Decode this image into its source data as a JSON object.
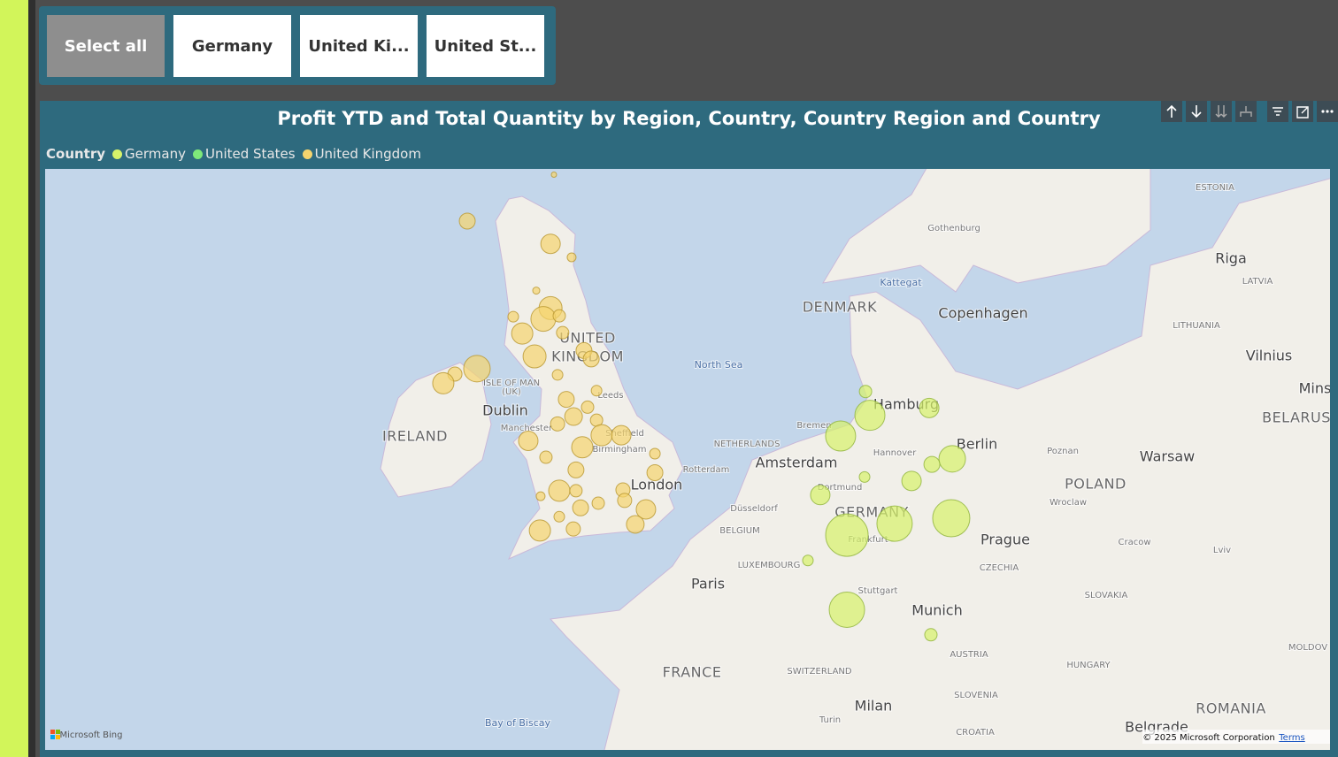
{
  "slicer": {
    "buttons": [
      "Select all",
      "Germany",
      "United Ki...",
      "United St..."
    ]
  },
  "chart_data": {
    "type": "bubble-map",
    "title": "Profit YTD and Total Quantity by Region, Country, Country Region and Country",
    "legend_title": "Country",
    "series": [
      {
        "name": "Germany",
        "color": "#d7f26a",
        "lon": [
          9.81,
          9.99,
          8.78,
          12.44,
          13.39,
          12.55,
          9.77,
          11.71,
          7.94,
          11.01,
          13.35,
          9.04,
          7.43,
          9.04,
          12.51
        ],
        "lat": [
          54.18,
          53.6,
          53.09,
          53.78,
          52.52,
          52.38,
          52.06,
          51.96,
          51.6,
          50.86,
          51.0,
          50.56,
          49.89,
          48.56,
          47.87
        ],
        "size": [
          7,
          17,
          17,
          11,
          15,
          9,
          6,
          11,
          11,
          20,
          21,
          24,
          6,
          20,
          7
        ]
      },
      {
        "name": "United States",
        "color": "#7ee87a",
        "lon": [],
        "lat": [],
        "size": []
      },
      {
        "name": "United Kingdom",
        "color": "#f5d46e",
        "lon": [
          -6.64,
          -3.2,
          -2.33,
          -3.79,
          -3.2,
          -3.5,
          -4.37,
          -4.74,
          -2.84,
          -2.7,
          -3.86,
          -6.24,
          -7.15,
          -7.63,
          -1.82,
          -1.52,
          -2.91,
          -2.55,
          -1.3,
          -1.67,
          -2.25,
          -2.91,
          -1.3,
          -4.12,
          -1.89,
          -1.09,
          -0.28,
          -3.39,
          -2.15,
          -2.84,
          -1.96,
          -0.21,
          -0.14,
          0.74,
          1.11,
          1.11,
          0.3,
          -1.23,
          -2.26,
          -3.64,
          -2.84,
          -2.15,
          -3.61,
          -3.06
        ],
        "lat": [
          58.1,
          57.6,
          57.3,
          56.55,
          56.15,
          55.9,
          55.56,
          55.95,
          55.97,
          55.58,
          55.02,
          54.73,
          54.6,
          54.38,
          55.16,
          54.96,
          54.58,
          53.99,
          54.2,
          53.8,
          53.57,
          53.39,
          53.48,
          52.97,
          52.81,
          53.11,
          53.11,
          52.56,
          52.24,
          51.71,
          51.27,
          51.73,
          51.46,
          51.23,
          52.17,
          52.65,
          50.84,
          51.39,
          50.72,
          50.68,
          51.04,
          51.71,
          51.57,
          59.1
        ],
        "size": [
          9,
          11,
          5,
          4,
          13,
          14,
          12,
          6,
          7,
          7,
          13,
          15,
          8,
          12,
          9,
          9,
          6,
          9,
          6,
          7,
          10,
          8,
          7,
          11,
          12,
          12,
          11,
          7,
          9,
          12,
          9,
          8,
          8,
          11,
          9,
          6,
          10,
          7,
          8,
          12,
          6,
          7,
          5,
          3
        ]
      }
    ],
    "map_labels": [
      "ESTONIA",
      "Riga",
      "LATVIA",
      "Gothenburg",
      "Kattegat",
      "DENMARK",
      "Copenhagen",
      "LITHUANIA",
      "UNITED",
      "KINGDOM",
      "North Sea",
      "Vilnius",
      "Mins",
      "BELARUS",
      "ISLE OF MAN",
      "(UK)",
      "Leeds",
      "Hamburg",
      "Dublin",
      "Bremen",
      "IRELAND",
      "Manchester",
      "Sheffield",
      "Berlin",
      "NETHERLANDS",
      "Birmingham",
      "Hannover",
      "Poznan",
      "Warsaw",
      "Amsterdam",
      "Rotterdam",
      "POLAND",
      "London",
      "Dortmund",
      "Wroclaw",
      "Düsseldorf",
      "GERMANY",
      "BELGIUM",
      "Frankfurt",
      "Prague",
      "Cracow",
      "Lviv",
      "LUXEMBOURG",
      "CZECHIA",
      "Paris",
      "Stuttgart",
      "SLOVAKIA",
      "Munich",
      "AUSTRIA",
      "HUNGARY",
      "MOLDOV",
      "FRANCE",
      "SWITZERLAND",
      "SLOVENIA",
      "Milan",
      "ROMANIA",
      "Bay of Biscay",
      "Turin",
      "Belgrade",
      "CROATIA"
    ],
    "attribution": {
      "brand": "Microsoft Bing",
      "copyright": "© 2025 Microsoft Corporation",
      "terms": "Terms"
    }
  }
}
